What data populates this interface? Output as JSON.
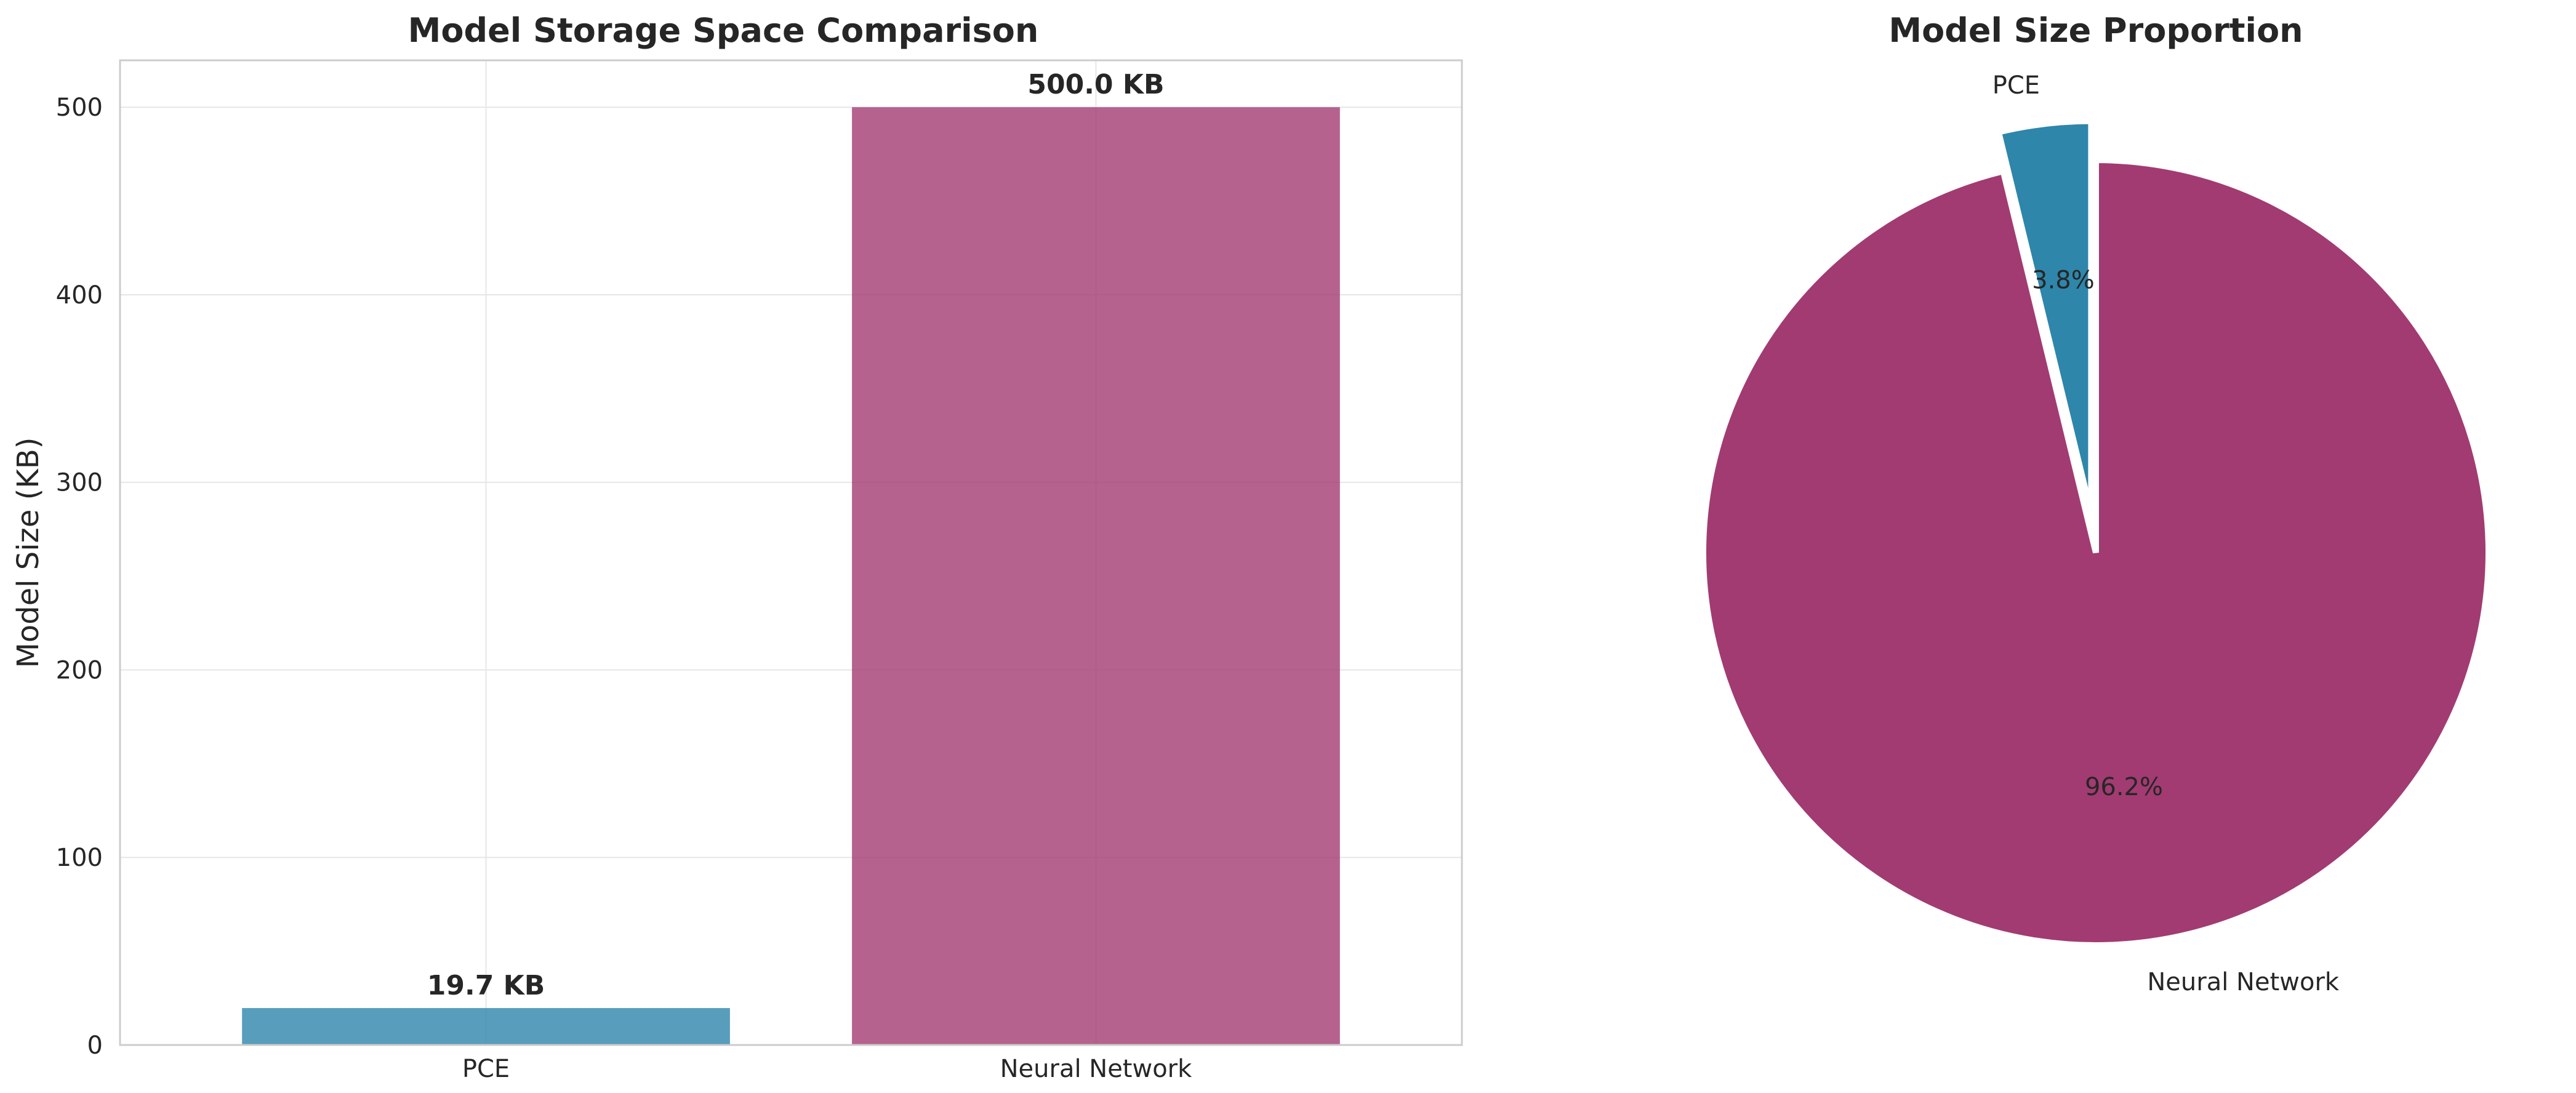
{
  "chart_data": [
    {
      "type": "bar",
      "title": "Model Storage Space Comparison",
      "xlabel": "",
      "ylabel": "Model Size (KB)",
      "categories": [
        "PCE",
        "Neural Network"
      ],
      "values": [
        19.7,
        500.0
      ],
      "data_labels": [
        "19.7 KB",
        "500.0 KB"
      ],
      "colors": [
        "#2e86ab",
        "#a23b72"
      ],
      "ylim": [
        0,
        525
      ],
      "yticks": [
        0,
        100,
        200,
        300,
        400,
        500
      ],
      "grid": true,
      "legend": "none"
    },
    {
      "type": "pie",
      "title": "Model Size Proportion",
      "labels": [
        "PCE",
        "Neural Network"
      ],
      "values": [
        19.7,
        500.0
      ],
      "percent_labels": [
        "3.8%",
        "96.2%"
      ],
      "colors": [
        "#2e86ab",
        "#a23b72"
      ],
      "exploded": [
        "PCE"
      ],
      "legend": "none"
    }
  ]
}
